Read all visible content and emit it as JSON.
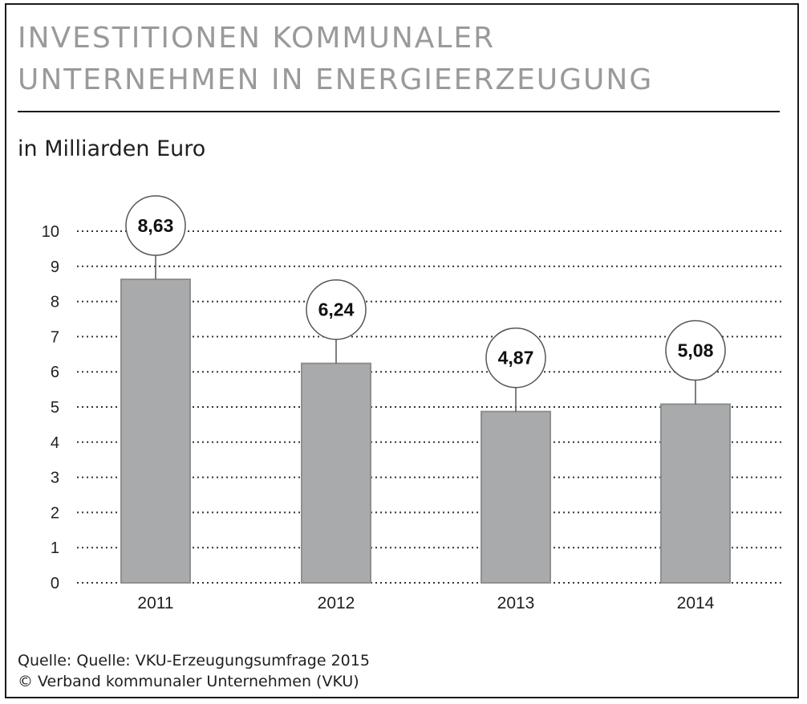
{
  "header": {
    "title": "INVESTITIONEN KOMMUNALER\nUNTERNEHMEN IN ENERGIEERZEUGUNG",
    "subtitle": "in Milliarden Euro"
  },
  "chart_data": {
    "type": "bar",
    "categories": [
      "2011",
      "2012",
      "2013",
      "2014"
    ],
    "values": [
      8.63,
      6.24,
      4.87,
      5.08
    ],
    "value_labels": [
      "8,63",
      "6,24",
      "4,87",
      "5,08"
    ],
    "y_ticks": [
      "0",
      "1",
      "2",
      "3",
      "4",
      "5",
      "6",
      "7",
      "8",
      "9",
      "10"
    ],
    "ylim": [
      0,
      10
    ],
    "grid": "dotted horizontal",
    "legend": "none",
    "colors": {
      "bar": "#a9aaab",
      "bar_border": "#8e8f90",
      "grid": "#333333",
      "label_circle": "#ffffff"
    }
  },
  "footer": {
    "source_line1": "Quelle: Quelle: VKU-Erzeugungsumfrage 2015",
    "source_line2": "© Verband kommunaler Unternehmen (VKU)"
  }
}
